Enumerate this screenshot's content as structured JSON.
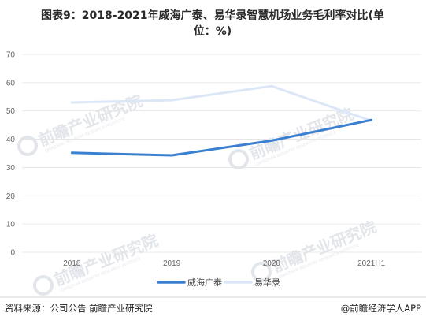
{
  "title": {
    "line1": "图表9：2018-2021年威海广泰、易华录智慧机场业务毛利率对比(单",
    "line2": "位：%)"
  },
  "chart_data": {
    "type": "line",
    "categories": [
      "2018",
      "2019",
      "2020",
      "2021H1"
    ],
    "series": [
      {
        "name": "威海广泰",
        "values": [
          35.2,
          34.3,
          39.5,
          46.8
        ],
        "color": "#3a7fd0"
      },
      {
        "name": "易华录",
        "values": [
          53.0,
          53.8,
          58.8,
          46.5
        ],
        "color": "#dbe7f7"
      }
    ],
    "ylim": [
      0,
      70
    ],
    "yticks": [
      0,
      10,
      20,
      30,
      40,
      50,
      60,
      70
    ],
    "grid": true,
    "legend_position": "bottom"
  },
  "watermark": {
    "brand": "前瞻产业研究院",
    "sub": "QIANZHAN INDUSTRY RESEARCH INSTITUTE"
  },
  "footer": {
    "source": "资料来源：公司公告 前瞻产业研究院",
    "credit": "@前瞻经济学人APP"
  }
}
